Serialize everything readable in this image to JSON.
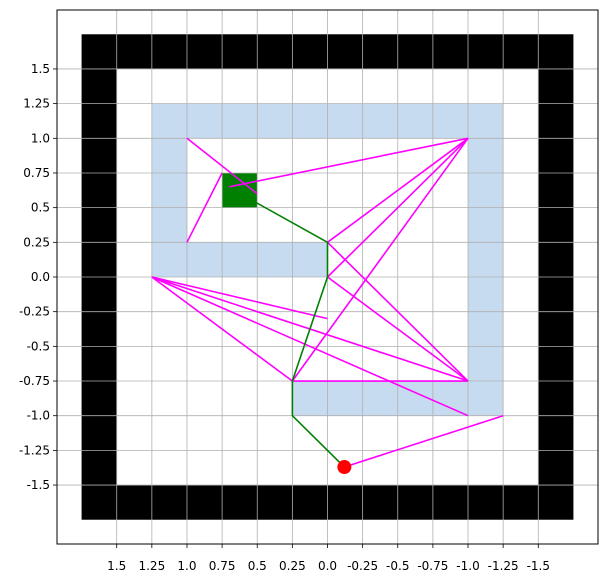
{
  "chart_data": {
    "type": "line",
    "title": "",
    "xlabel": "",
    "ylabel": "",
    "xlim": [
      1.925,
      -1.925
    ],
    "ylim": [
      -1.925,
      1.925
    ],
    "x_ticks": [
      1.5,
      1.25,
      1.0,
      0.75,
      0.5,
      0.25,
      0.0,
      -0.25,
      -0.5,
      -0.75,
      -1.0,
      -1.25,
      -1.5
    ],
    "x_tick_labels": [
      "1.5",
      "1.25",
      "1.0",
      "0.75",
      "0.5",
      "0.25",
      "0.0",
      "-0.25",
      "-0.5",
      "-0.75",
      "-1.0",
      "-1.25",
      "-1.5"
    ],
    "y_ticks": [
      1.5,
      1.25,
      1.0,
      0.75,
      0.5,
      0.25,
      0.0,
      -0.25,
      -0.5,
      -0.75,
      -1.0,
      -1.25,
      -1.5
    ],
    "y_tick_labels": [
      "1.5",
      "1.25",
      "1.0",
      "0.75",
      "0.5",
      "0.25",
      "0.0",
      "-0.25",
      "-0.5",
      "-0.75",
      "-1.0",
      "-1.25",
      "-1.5"
    ],
    "grid": true,
    "x_axis_inverted": true,
    "colors": {
      "wall": "#000000",
      "free_space": "#ffffff",
      "inflated_obstacle": "#c6dbef",
      "goal": "#008000",
      "start": "#ff0000",
      "tree_edges": "#ff00ff",
      "path": "#008000",
      "grid": "#b0b0b0"
    },
    "walls": [
      {
        "x": [
          -1.75,
          1.75
        ],
        "y": [
          -1.75,
          1.75
        ]
      }
    ],
    "free_area": {
      "x": [
        -1.5,
        1.5
      ],
      "y": [
        -1.5,
        1.5
      ]
    },
    "obstacles": [
      {
        "x": [
          -1.25,
          1.25
        ],
        "y": [
          1.0,
          1.25
        ]
      },
      {
        "x": [
          -1.25,
          -1.0
        ],
        "y": [
          -1.0,
          1.25
        ]
      },
      {
        "x": [
          1.0,
          1.25
        ],
        "y": [
          0.0,
          1.25
        ]
      },
      {
        "x": [
          0.0,
          1.25
        ],
        "y": [
          0.0,
          0.25
        ]
      },
      {
        "x": [
          -1.25,
          0.25
        ],
        "y": [
          -1.0,
          -0.75
        ]
      }
    ],
    "goal": {
      "x": [
        0.5,
        0.75
      ],
      "y": [
        0.5,
        0.75
      ]
    },
    "start": {
      "x": -0.12,
      "y": -1.37
    },
    "tree_edges": [
      [
        [
          -0.12,
          -1.37
        ],
        [
          -1.25,
          -1.0
        ]
      ],
      [
        [
          1.25,
          0.0
        ],
        [
          -1.0,
          -1.0
        ]
      ],
      [
        [
          1.25,
          0.0
        ],
        [
          -1.0,
          -0.75
        ]
      ],
      [
        [
          1.25,
          0.0
        ],
        [
          0.0,
          -0.3
        ]
      ],
      [
        [
          1.25,
          0.0
        ],
        [
          0.25,
          -0.75
        ]
      ],
      [
        [
          1.0,
          1.0
        ],
        [
          0.5,
          0.6
        ]
      ],
      [
        [
          1.0,
          0.25
        ],
        [
          0.75,
          0.75
        ]
      ],
      [
        [
          0.7,
          0.65
        ],
        [
          -1.0,
          1.0
        ]
      ],
      [
        [
          0.0,
          0.25
        ],
        [
          -1.0,
          1.0
        ]
      ],
      [
        [
          0.0,
          0.25
        ],
        [
          -1.0,
          -0.75
        ]
      ],
      [
        [
          0.0,
          0.0
        ],
        [
          -1.0,
          1.0
        ]
      ],
      [
        [
          0.0,
          0.0
        ],
        [
          -1.0,
          -0.75
        ]
      ],
      [
        [
          0.25,
          -0.75
        ],
        [
          -1.0,
          1.0
        ]
      ],
      [
        [
          0.25,
          -0.75
        ],
        [
          -1.0,
          -0.75
        ]
      ]
    ],
    "path": [
      [
        -0.12,
        -1.37
      ],
      [
        0.25,
        -1.0
      ],
      [
        0.25,
        -0.75
      ],
      [
        0.0,
        0.0
      ],
      [
        0.0,
        0.25
      ],
      [
        0.62,
        0.6
      ]
    ]
  }
}
